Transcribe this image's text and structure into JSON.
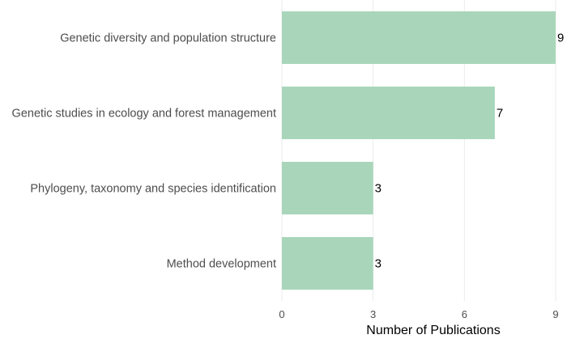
{
  "chart_data": {
    "type": "bar",
    "orientation": "horizontal",
    "categories": [
      "Genetic diversity and population structure",
      "Genetic studies in ecology and forest management",
      "Phylogeny, taxonomy and species identification",
      "Method development"
    ],
    "values": [
      9,
      7,
      3,
      3
    ],
    "xlabel": "Number of Publications",
    "ylabel": "",
    "xlim": [
      0,
      9
    ],
    "xticks": [
      0,
      3,
      6,
      9
    ],
    "grid": "vertical",
    "bar_color": "#a9d6bb",
    "grid_color": "#ebebeb"
  }
}
